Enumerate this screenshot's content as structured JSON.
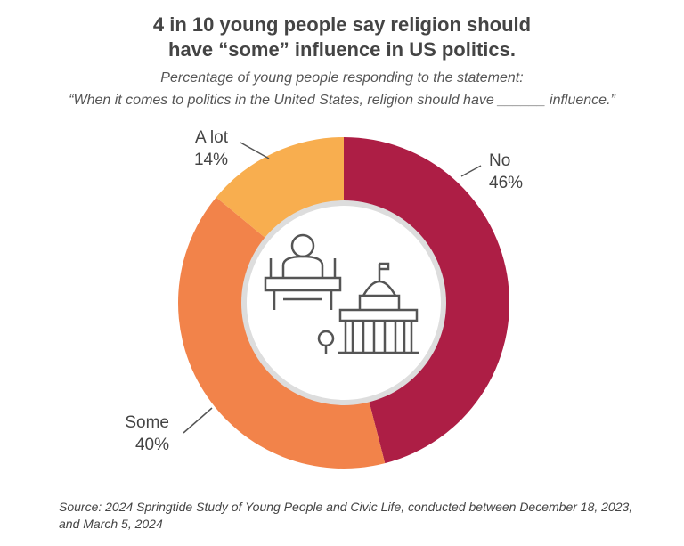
{
  "chart_data": {
    "type": "pie",
    "title": [
      "4 in 10 young people say religion should",
      "have “some” influence in US politics."
    ],
    "subtitle": [
      "Percentage of young people responding to the statement:",
      "“When it comes to politics in the United States, religion should have ______ influence.”"
    ],
    "categories": [
      "No",
      "Some",
      "A lot"
    ],
    "values": [
      46,
      40,
      14
    ],
    "value_labels": [
      "46%",
      "40%",
      "14%"
    ],
    "colors": [
      "#ad1e45",
      "#f2834a",
      "#f8ae4f"
    ],
    "source": "Source: 2024 Springtide Study of Young People and Civic Life, conducted between December 18, 2023, and March 5, 2024"
  }
}
